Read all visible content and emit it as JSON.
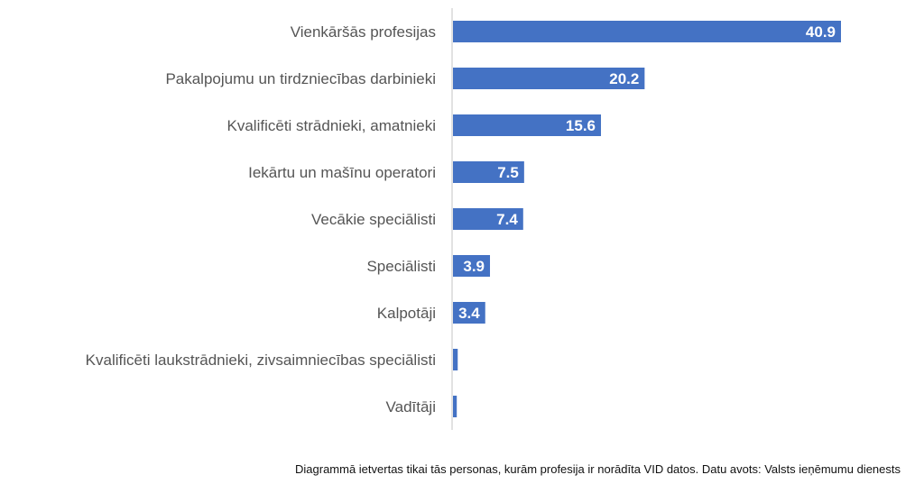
{
  "chart_data": {
    "type": "bar",
    "orientation": "horizontal",
    "categories": [
      "Vienkāršās profesijas",
      "Pakalpojumu un tirdzniecības darbinieki",
      "Kvalificēti strādnieki, amatnieki",
      "Iekārtu un mašīnu operatori",
      "Vecākie speciālisti",
      "Speciālisti",
      "Kalpotāji",
      "Kvalificēti lauksrādnieki, zivsaimniecības speciālisti",
      "Vadītāji"
    ],
    "values": [
      40.9,
      20.2,
      15.6,
      7.5,
      7.4,
      3.9,
      3.4,
      0.5,
      0.4
    ],
    "labels": [
      "40.9",
      "20.2",
      "15.6",
      "7.5",
      "7.4",
      "3.9",
      "3.4",
      "",
      ""
    ],
    "xlim": [
      0,
      45
    ],
    "bar_color": "#4472c4",
    "grid": false,
    "note": "Diagrammā ietvertas tikai tās personas, kurām profesija ir norādīta VID datos. Datu avots: Valsts ieņēmumu dienests"
  }
}
